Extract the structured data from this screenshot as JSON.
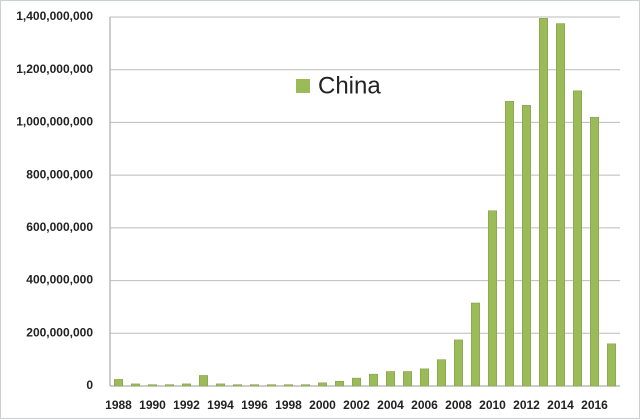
{
  "chart_data": {
    "type": "bar",
    "series": [
      {
        "name": "China",
        "color": "#9bbb59",
        "values": [
          25000000,
          8000000,
          5000000,
          5000000,
          8000000,
          40000000,
          8000000,
          5000000,
          5000000,
          5000000,
          5000000,
          5000000,
          12000000,
          18000000,
          30000000,
          45000000,
          55000000,
          55000000,
          65000000,
          100000000,
          175000000,
          315000000,
          665000000,
          1080000000,
          1065000000,
          1395000000,
          1375000000,
          1120000000,
          1020000000,
          160000000
        ]
      }
    ],
    "categories": [
      "1988",
      null,
      "1990",
      null,
      "1992",
      null,
      "1994",
      null,
      "1996",
      null,
      "1998",
      null,
      "2000",
      null,
      "2002",
      null,
      "2004",
      null,
      "2006",
      null,
      "2008",
      null,
      "2010",
      null,
      "2012",
      null,
      "2014",
      null,
      "2016",
      null
    ],
    "ylim": [
      0,
      1400000000
    ],
    "yticks": [
      0,
      {
        "value": 200000000,
        "label": "200,000,000"
      },
      {
        "value": 400000000,
        "label": "400,000,000"
      },
      {
        "value": 600000000,
        "label": "600,000,000"
      },
      {
        "value": 800000000,
        "label": "800,000,000"
      },
      {
        "value": 1000000000,
        "label": "1,000,000,000"
      },
      {
        "value": 1200000000,
        "label": "1,200,000,000"
      },
      {
        "value": 1400000000,
        "label": "1,400,000,000"
      }
    ],
    "grid": true
  }
}
